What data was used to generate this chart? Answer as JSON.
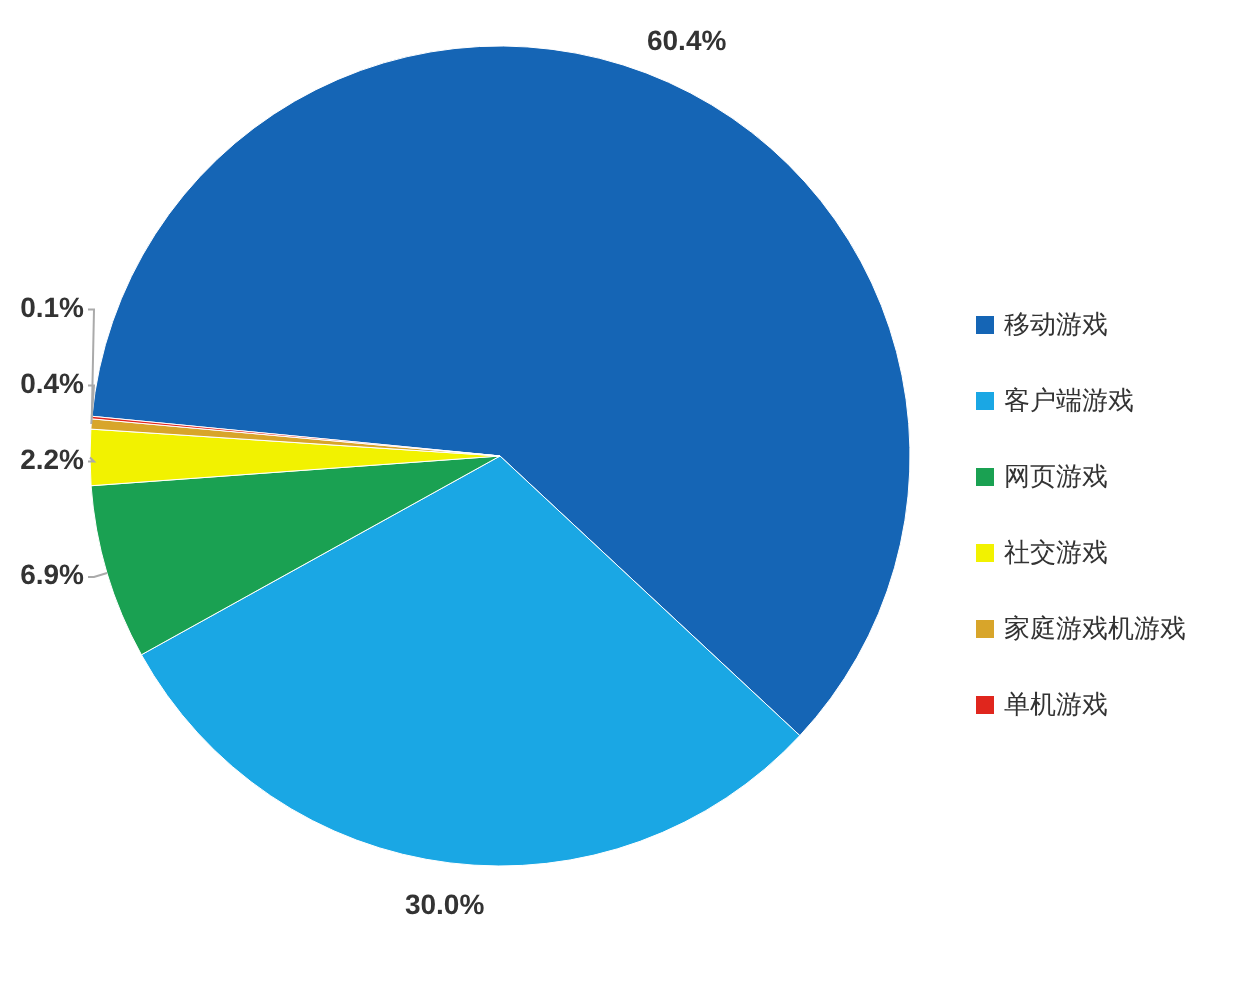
{
  "chart_data": {
    "type": "pie",
    "categories": [
      "移动游戏",
      "客户端游戏",
      "网页游戏",
      "社交游戏",
      "家庭游戏机游戏",
      "单机游戏"
    ],
    "values": [
      60.4,
      30.0,
      6.9,
      2.2,
      0.4,
      0.1
    ],
    "colors": [
      "#1565b5",
      "#1aa7e4",
      "#1aa152",
      "#f2f200",
      "#d8a52a",
      "#e0261d"
    ],
    "value_labels": [
      "60.4%",
      "30.0%",
      "6.9%",
      "2.2%",
      "0.4%",
      "0.1%"
    ],
    "legend": "right"
  }
}
